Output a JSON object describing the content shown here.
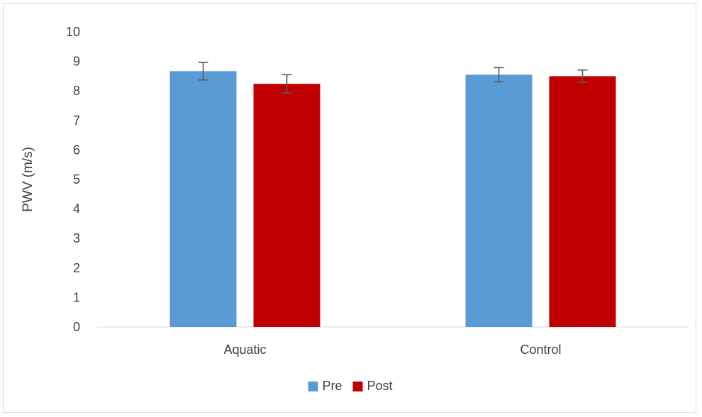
{
  "chart_data": {
    "type": "bar",
    "title": "",
    "xlabel": "",
    "ylabel": "PWV (m/s)",
    "ylim": [
      0,
      10
    ],
    "yticks": [
      0,
      1,
      2,
      3,
      4,
      5,
      6,
      7,
      8,
      9,
      10
    ],
    "categories": [
      "Aquatic",
      "Control"
    ],
    "series": [
      {
        "name": "Pre",
        "color": "#5b9bd5",
        "values": [
          8.67,
          8.55
        ],
        "error": [
          0.3,
          0.24
        ]
      },
      {
        "name": "Post",
        "color": "#c00000",
        "values": [
          8.24,
          8.5
        ],
        "error": [
          0.31,
          0.21
        ]
      }
    ],
    "grid": false,
    "legend": "bottom",
    "error_bar_color": "#595959"
  }
}
